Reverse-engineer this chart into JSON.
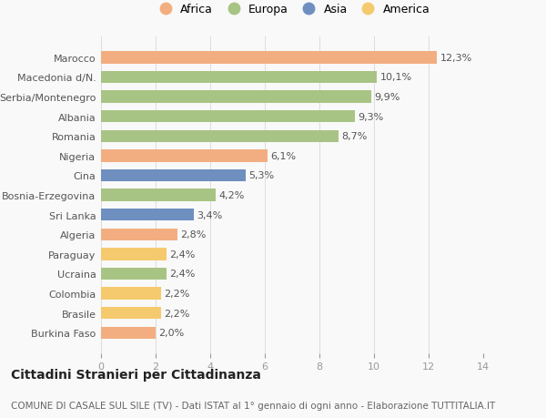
{
  "categories": [
    "Burkina Faso",
    "Brasile",
    "Colombia",
    "Ucraina",
    "Paraguay",
    "Algeria",
    "Sri Lanka",
    "Bosnia-Erzegovina",
    "Cina",
    "Nigeria",
    "Romania",
    "Albania",
    "Serbia/Montenegro",
    "Macedonia d/N.",
    "Marocco"
  ],
  "values": [
    2.0,
    2.2,
    2.2,
    2.4,
    2.4,
    2.8,
    3.4,
    4.2,
    5.3,
    6.1,
    8.7,
    9.3,
    9.9,
    10.1,
    12.3
  ],
  "labels": [
    "2,0%",
    "2,2%",
    "2,2%",
    "2,4%",
    "2,4%",
    "2,8%",
    "3,4%",
    "4,2%",
    "5,3%",
    "6,1%",
    "8,7%",
    "9,3%",
    "9,9%",
    "10,1%",
    "12,3%"
  ],
  "colors": [
    "#f2ae80",
    "#f5ca6e",
    "#f5ca6e",
    "#a8c484",
    "#f5ca6e",
    "#f2ae80",
    "#6e8fc0",
    "#a8c484",
    "#6e8fc0",
    "#f2ae80",
    "#a8c484",
    "#a8c484",
    "#a8c484",
    "#a8c484",
    "#f2ae80"
  ],
  "legend_labels": [
    "Africa",
    "Europa",
    "Asia",
    "America"
  ],
  "legend_colors": [
    "#f2ae80",
    "#a8c484",
    "#6e8fc0",
    "#f5ca6e"
  ],
  "title": "Cittadini Stranieri per Cittadinanza",
  "subtitle": "COMUNE DI CASALE SUL SILE (TV) - Dati ISTAT al 1° gennaio di ogni anno - Elaborazione TUTTITALIA.IT",
  "xlim": [
    0,
    14
  ],
  "xticks": [
    0,
    2,
    4,
    6,
    8,
    10,
    12,
    14
  ],
  "background_color": "#f9f9f9",
  "bar_height": 0.62,
  "title_fontsize": 10,
  "subtitle_fontsize": 7.5,
  "label_fontsize": 8,
  "tick_fontsize": 8,
  "legend_fontsize": 9
}
